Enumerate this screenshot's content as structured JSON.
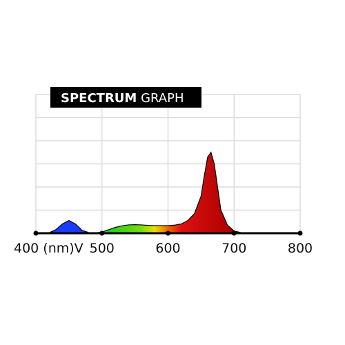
{
  "chart_data": {
    "type": "area",
    "title_parts": [
      "SPECTRUM",
      "GRAPH"
    ],
    "x": [
      400,
      410,
      420,
      430,
      440,
      450,
      460,
      470,
      480,
      490,
      500,
      510,
      520,
      530,
      540,
      550,
      560,
      570,
      580,
      590,
      600,
      610,
      620,
      630,
      640,
      650,
      655,
      660,
      665,
      670,
      675,
      680,
      690,
      700,
      710,
      720,
      800
    ],
    "values": [
      0,
      0,
      0.02,
      0.15,
      0.4,
      0.55,
      0.4,
      0.12,
      0.03,
      0.02,
      0.05,
      0.15,
      0.25,
      0.32,
      0.36,
      0.37,
      0.36,
      0.34,
      0.33,
      0.33,
      0.33,
      0.35,
      0.4,
      0.55,
      0.85,
      1.6,
      2.5,
      3.3,
      3.5,
      3.0,
      2.0,
      1.0,
      0.35,
      0.1,
      0.03,
      0,
      0
    ],
    "xlim": [
      400,
      800
    ],
    "ylim": [
      0,
      6
    ],
    "xticks": [
      {
        "value": 400,
        "label": "400 (nm)V"
      },
      500,
      600,
      700,
      800
    ],
    "yticks": [
      1,
      2,
      3,
      4,
      5,
      6
    ],
    "grid": true,
    "color_stops": [
      {
        "x": 430,
        "color": "#1a3cff"
      },
      {
        "x": 470,
        "color": "#1a3cff"
      },
      {
        "x": 490,
        "color": "#20a0a0"
      },
      {
        "x": 510,
        "color": "#22cc22"
      },
      {
        "x": 560,
        "color": "#77dd11"
      },
      {
        "x": 580,
        "color": "#eedd00"
      },
      {
        "x": 600,
        "color": "#ee6600"
      },
      {
        "x": 620,
        "color": "#dd1111"
      },
      {
        "x": 700,
        "color": "#aa0000"
      }
    ]
  }
}
